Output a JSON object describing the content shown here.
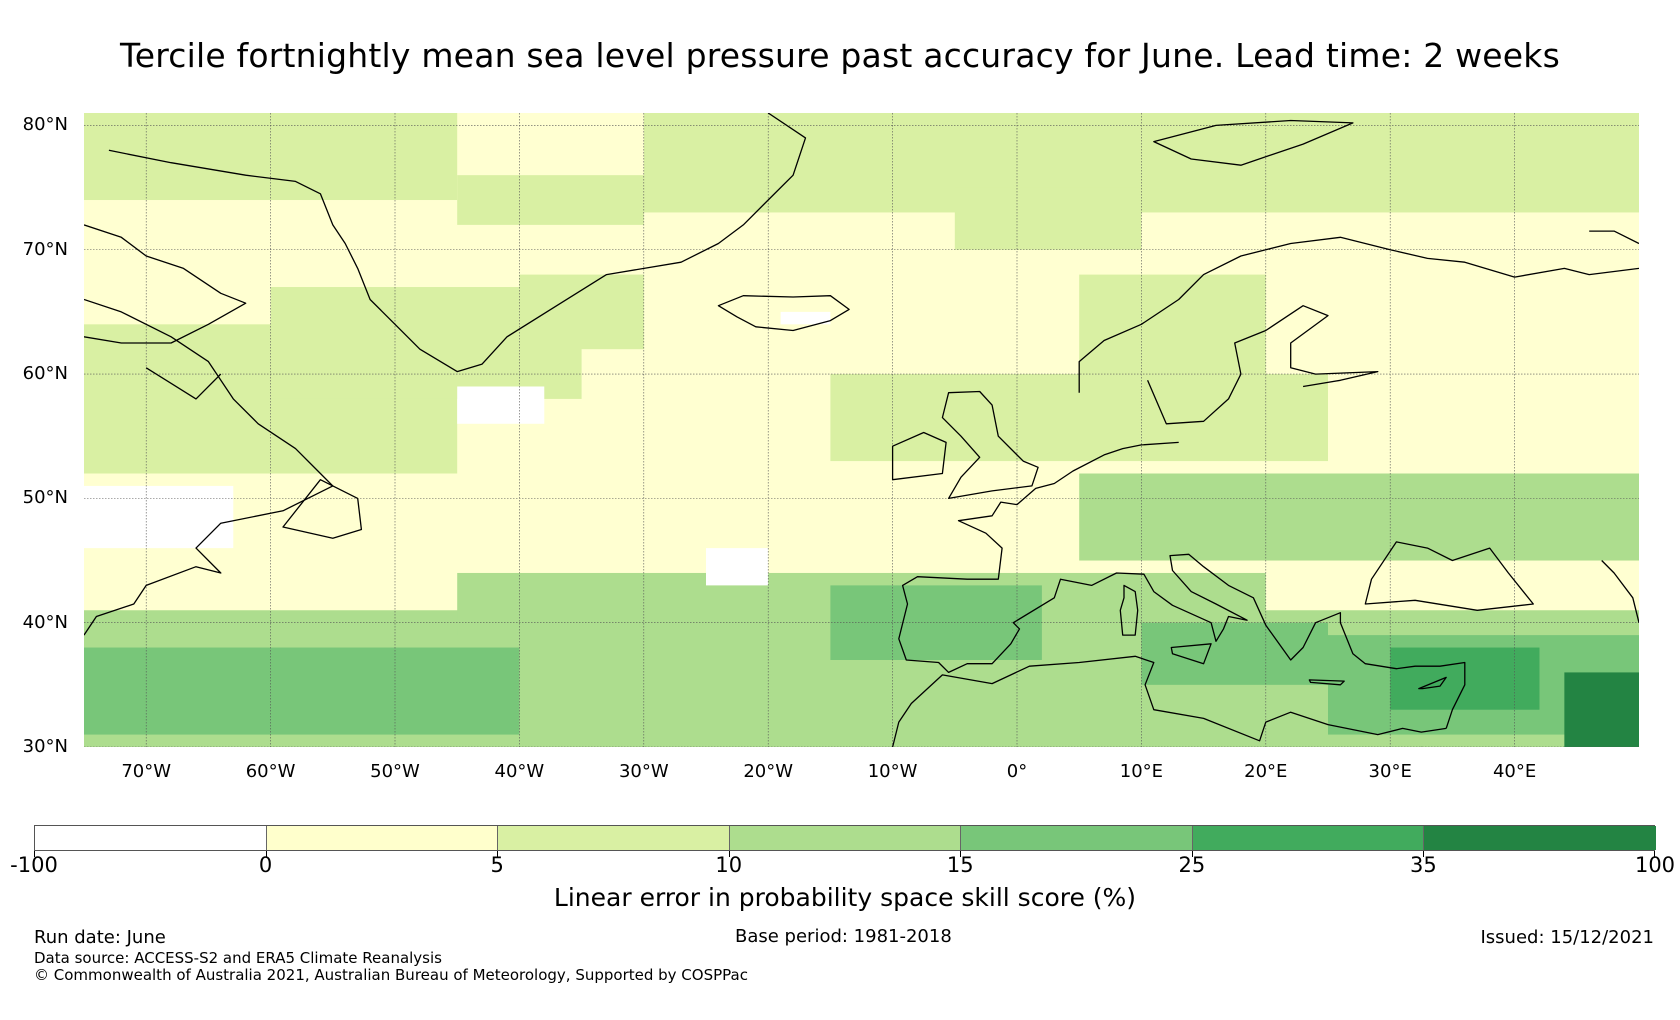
{
  "title": "Tercile fortnightly mean sea level pressure past accuracy for June. Lead time: 2 weeks",
  "map": {
    "lat_range": [
      30,
      81
    ],
    "lon_range": [
      -75,
      50
    ],
    "lat_labels": [
      {
        "value": 80,
        "text": "80°N"
      },
      {
        "value": 70,
        "text": "70°N"
      },
      {
        "value": 60,
        "text": "60°N"
      },
      {
        "value": 50,
        "text": "50°N"
      },
      {
        "value": 40,
        "text": "40°N"
      },
      {
        "value": 30,
        "text": "30°N"
      }
    ],
    "lon_labels": [
      {
        "value": -70,
        "text": "70°W"
      },
      {
        "value": -60,
        "text": "60°W"
      },
      {
        "value": -50,
        "text": "50°W"
      },
      {
        "value": -40,
        "text": "40°W"
      },
      {
        "value": -30,
        "text": "30°W"
      },
      {
        "value": -20,
        "text": "20°W"
      },
      {
        "value": -10,
        "text": "10°W"
      },
      {
        "value": 0,
        "text": "0°"
      },
      {
        "value": 10,
        "text": "10°E"
      },
      {
        "value": 20,
        "text": "20°E"
      },
      {
        "value": 30,
        "text": "30°E"
      },
      {
        "value": 40,
        "text": "40°E"
      }
    ],
    "background_color": "#ffffd1",
    "coast_color": "#000000"
  },
  "colorbar": {
    "boundaries": [
      -100,
      0,
      5,
      10,
      15,
      25,
      35,
      100
    ],
    "tick_labels": [
      "-100",
      "0",
      "5",
      "10",
      "15",
      "25",
      "35",
      "100"
    ],
    "colors": [
      "#ffffff",
      "#ffffcc",
      "#d9f0a3",
      "#addd8e",
      "#78c679",
      "#41ab5d",
      "#238443"
    ],
    "label": "Linear error in probability space skill score (%)"
  },
  "footer": {
    "run_date": "Run date: June",
    "base_period": "Base period: 1981-2018",
    "issued": "Issued: 15/12/2021",
    "data_source": "Data source: ACCESS-S2 and ERA5 Climate Reanalysis",
    "copyright": "© Commonwealth of Australia 2021, Australian Bureau of Meteorology, Supported by COSPPac"
  }
}
